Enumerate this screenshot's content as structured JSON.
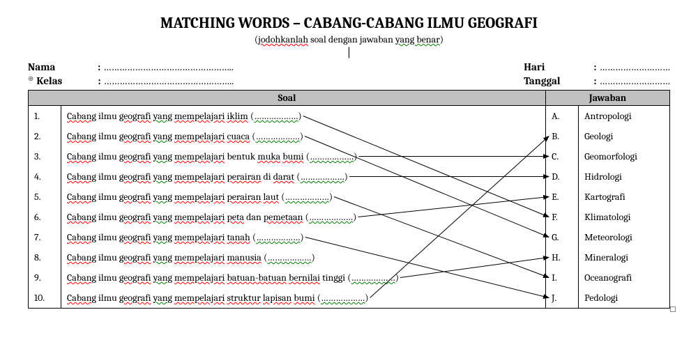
{
  "title": "MATCHING WORDS – CABANG-CABANG ILMU GEOGRAFI",
  "subtitle_open": "(",
  "subtitle_w1": "jodohkanlah",
  "subtitle_mid": " soal dengan jawaban ",
  "subtitle_w2": "yang benar",
  "subtitle_close": ")",
  "cursor": "|",
  "fields": {
    "nama_label": "Nama",
    "kelas_label": "Kelas",
    "hari_label": "Hari",
    "tanggal_label": "Tanggal",
    "colon": ":",
    "dots_long": "…………………………………………..",
    "dots_short": "………………………"
  },
  "headers": {
    "soal": "Soal",
    "jawaban": "Jawaban"
  },
  "prefix_w1": "Cabang",
  "prefix_mid": " ilmu ",
  "prefix_w2": "geografi",
  "prefix_sp": " ",
  "prefix_w3": "yang",
  "prefix_w4": "mempelajari",
  "blank_open": "(",
  "blank_dots": "………………",
  "blank_close": ")",
  "rows": [
    {
      "n": "1.",
      "tail": "iklim",
      "l": "A.",
      "ans": "Antropologi"
    },
    {
      "n": "2.",
      "tail": "cuaca",
      "l": "B.",
      "ans": "Geologi"
    },
    {
      "n": "3.",
      "tail_plain": "bentuk ",
      "tail_r1": "muka",
      "tail_mid": " ",
      "tail_r2": "bumi",
      "l": "C.",
      "ans": "Geomorfologi"
    },
    {
      "n": "4.",
      "tail_r1": "perairan",
      "tail_mid": " di ",
      "tail_r2": "darat",
      "l": "D.",
      "ans": "Hidrologi"
    },
    {
      "n": "5.",
      "tail_r1": "perairan",
      "tail_mid": " ",
      "tail_r2": "laut",
      "l": "E.",
      "ans": "Kartografi"
    },
    {
      "n": "6.",
      "tail_r1": "peta",
      "tail_mid": " dan ",
      "tail_r2": "pemetaan",
      "l": "F.",
      "ans": "Klimatologi"
    },
    {
      "n": "7.",
      "tail": "tanah",
      "l": "G.",
      "ans": "Meteorologi"
    },
    {
      "n": "8.",
      "tail": "manusia",
      "l": "H.",
      "ans": "Mineralogi"
    },
    {
      "n": "9.",
      "tail_r1": "batuan-batuan",
      "tail_mid": " ",
      "tail_r2": "bernilai",
      "tail_after": " tinggi",
      "l": "I.",
      "ans": "Oceanografi"
    },
    {
      "n": "10.",
      "tail_r1": "struktur",
      "tail_mid": " ",
      "tail_r2": "lapisan",
      "tail_mid2": " ",
      "tail_r3": "bumi",
      "l": "J.",
      "ans": "Pedologi"
    }
  ],
  "arrows": [
    {
      "from": 1,
      "to": 6
    },
    {
      "from": 2,
      "to": 7
    },
    {
      "from": 3,
      "to": 3
    },
    {
      "from": 4,
      "to": 4
    },
    {
      "from": 5,
      "to": 9
    },
    {
      "from": 6,
      "to": 5
    },
    {
      "from": 7,
      "to": 10
    },
    {
      "from": 9,
      "to": 8
    },
    {
      "from": 10,
      "to": 2
    }
  ],
  "style": {
    "arrow_color": "#000000",
    "arrow_width": 1,
    "header_bg": "#c0c0c0"
  }
}
